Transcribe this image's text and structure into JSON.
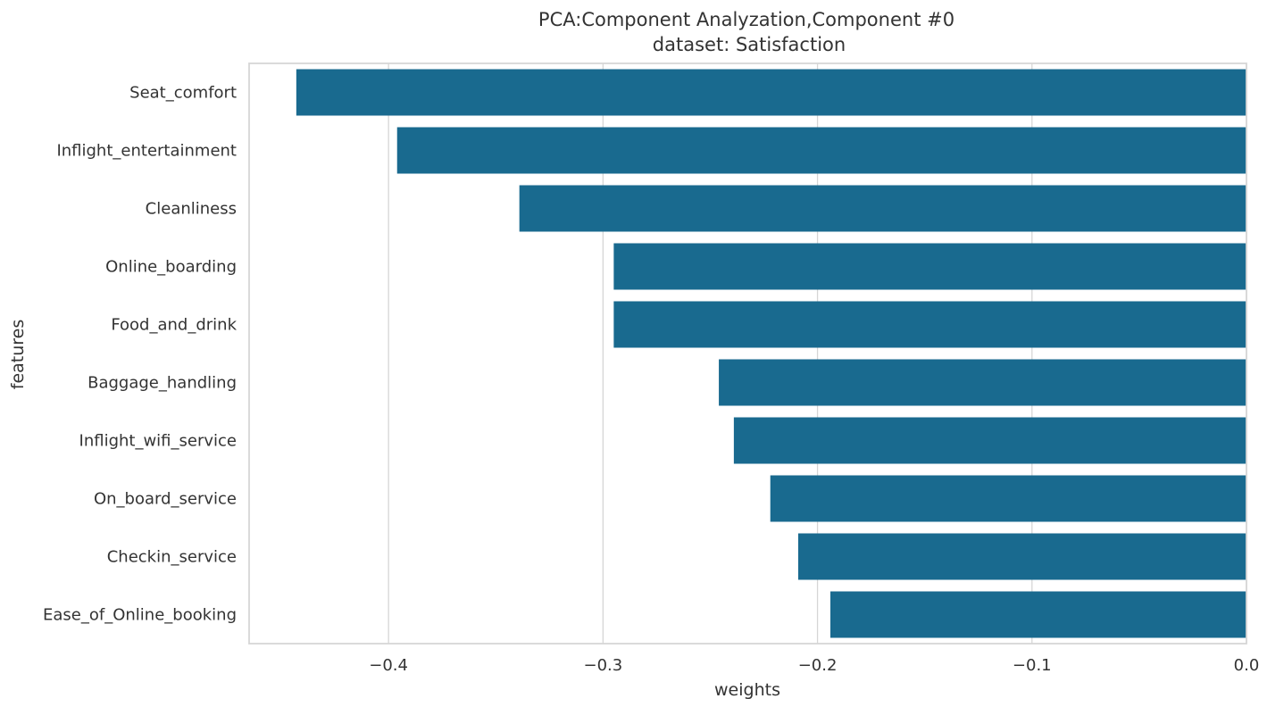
{
  "chart_data": {
    "type": "bar",
    "orientation": "horizontal",
    "title": "PCA:Component Analyzation,Component #0",
    "subtitle": "dataset: Satisfaction",
    "xlabel": "weights",
    "ylabel": "features",
    "categories": [
      "Seat_comfort",
      "Inflight_entertainment",
      "Cleanliness",
      "Online_boarding",
      "Food_and_drink",
      "Baggage_handling",
      "Inflight_wifi_service",
      "On_board_service",
      "Checkin_service",
      "Ease_of_Online_booking"
    ],
    "values": [
      -0.443,
      -0.396,
      -0.339,
      -0.295,
      -0.295,
      -0.246,
      -0.239,
      -0.222,
      -0.209,
      -0.194
    ],
    "xlim": [
      -0.465,
      0.0
    ],
    "xticks": [
      -0.4,
      -0.3,
      -0.2,
      -0.1,
      0.0
    ],
    "xtick_labels": [
      "−0.4",
      "−0.3",
      "−0.2",
      "−0.1",
      "0.0"
    ],
    "grid": true,
    "bar_color": "#196a8f",
    "grid_color": "#d6d6d6"
  }
}
